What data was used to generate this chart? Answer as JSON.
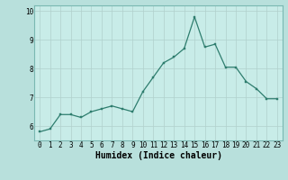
{
  "title": "",
  "xlabel": "Humidex (Indice chaleur)",
  "ylabel": "",
  "x_values": [
    0,
    1,
    2,
    3,
    4,
    5,
    6,
    7,
    8,
    9,
    10,
    11,
    12,
    13,
    14,
    15,
    16,
    17,
    18,
    19,
    20,
    21,
    22,
    23
  ],
  "y_values": [
    5.8,
    5.9,
    6.4,
    6.4,
    6.3,
    6.5,
    6.6,
    6.7,
    6.6,
    6.5,
    7.2,
    7.7,
    8.2,
    8.4,
    8.7,
    9.8,
    8.75,
    8.85,
    8.05,
    8.05,
    7.55,
    7.3,
    6.95,
    6.95
  ],
  "line_color": "#2e7d6e",
  "marker_color": "#2e7d6e",
  "bg_color": "#b8e0dc",
  "grid_color": "#c8ece8",
  "axes_bg": "#c8ece8",
  "ylim": [
    5.5,
    10.2
  ],
  "yticks": [
    6,
    7,
    8,
    9,
    10
  ],
  "xticks": [
    0,
    1,
    2,
    3,
    4,
    5,
    6,
    7,
    8,
    9,
    10,
    11,
    12,
    13,
    14,
    15,
    16,
    17,
    18,
    19,
    20,
    21,
    22,
    23
  ],
  "tick_fontsize": 5.5,
  "xlabel_fontsize": 7,
  "border_color": "#7ab8b2",
  "grid_major_color": "#b0d0cc",
  "grid_minor_color": "#c4e4e0"
}
